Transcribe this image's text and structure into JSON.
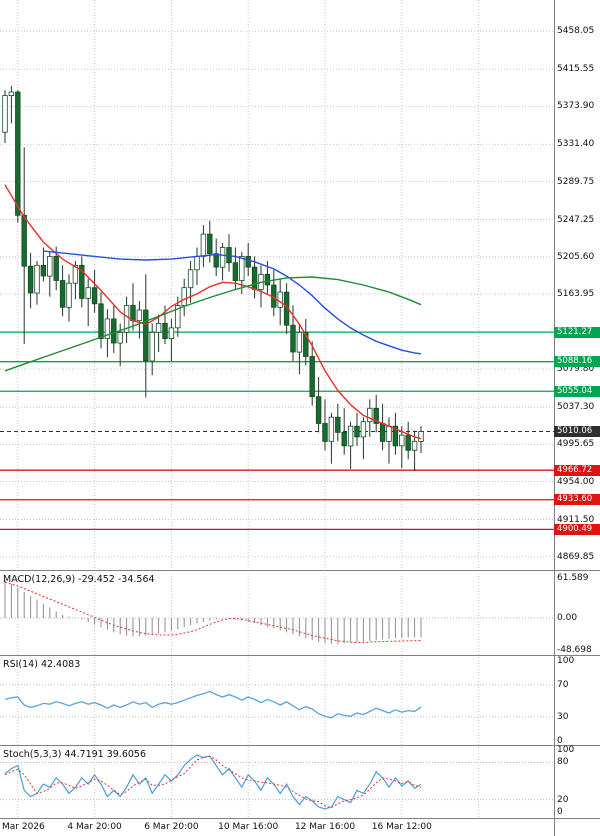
{
  "colors": {
    "background": "#ffffff",
    "grid": "#c8c8c8",
    "separator": "#808080",
    "text": "#111111",
    "candle_up": "#ffffff",
    "candle_down": "#176b2f",
    "candle_border": "#174a26",
    "candle_wick": "#26332a",
    "ma_fast": "#e8312a",
    "ma_mid": "#2450d8",
    "ma_slow": "#1e8c32",
    "level_up": "#00a651",
    "level_down": "#e01313",
    "level_current": "#2f2f2f",
    "macd_hist": "#8c8c8c",
    "macd_signal": "#e8312a",
    "rsi_line": "#55a5dd",
    "stoch_k": "#47a0d8",
    "stoch_d": "#e8312a"
  },
  "indicators": {
    "macd_label": "MACD(12,26,9) -29.452 -34.564",
    "rsi_label": "RSI(14) 42.4083",
    "stoch_label": "Stoch(5,3,3) 44.7191 39.6056"
  },
  "chart_data": [
    {
      "type": "candlestick",
      "title": "",
      "columns": [
        "open",
        "high",
        "low",
        "close"
      ],
      "ylim": [
        4855,
        5493
      ],
      "yticks": [
        "5458.05",
        "5415.55",
        "5373.90",
        "5331.40",
        "5289.75",
        "5247.25",
        "5205.60",
        "5163.95",
        "5079.80",
        "5037.30",
        "4995.65",
        "4954.00",
        "4911.50",
        "4869.85"
      ],
      "x_labels": [
        {
          "bar": 2,
          "label": "Mar 2026"
        },
        {
          "bar": 14,
          "label": "4 Mar 20:00"
        },
        {
          "bar": 26,
          "label": "6 Mar 20:00"
        },
        {
          "bar": 38,
          "label": "10 Mar 16:00"
        },
        {
          "bar": 50,
          "label": "12 Mar 16:00"
        },
        {
          "bar": 62,
          "label": "16 Mar 12:00"
        },
        {
          "bar": 74,
          "label": ""
        }
      ],
      "levels": [
        {
          "value": 5121.27,
          "label": "5121.27",
          "kind": "resistance"
        },
        {
          "value": 5088.16,
          "label": "5088.16",
          "kind": "resistance"
        },
        {
          "value": 5055.04,
          "label": "5055.04",
          "kind": "resistance"
        },
        {
          "value": 5010.06,
          "label": "5010.06",
          "kind": "current"
        },
        {
          "value": 4966.72,
          "label": "4966.72",
          "kind": "support"
        },
        {
          "value": 4933.6,
          "label": "4933.60",
          "kind": "support"
        },
        {
          "value": 4900.49,
          "label": "4900.49",
          "kind": "support"
        }
      ],
      "candles": [
        [
          5345,
          5392,
          5333,
          5386
        ],
        [
          5386,
          5397,
          5355,
          5390
        ],
        [
          5390,
          5392,
          5244,
          5252
        ],
        [
          5252,
          5328,
          5108,
          5195
        ],
        [
          5195,
          5210,
          5148,
          5165
        ],
        [
          5165,
          5201,
          5152,
          5196
        ],
        [
          5196,
          5216,
          5178,
          5184
        ],
        [
          5184,
          5212,
          5161,
          5206
        ],
        [
          5206,
          5217,
          5168,
          5179
        ],
        [
          5179,
          5196,
          5139,
          5149
        ],
        [
          5149,
          5186,
          5133,
          5176
        ],
        [
          5176,
          5201,
          5158,
          5196
        ],
        [
          5196,
          5206,
          5149,
          5159
        ],
        [
          5159,
          5181,
          5128,
          5171
        ],
        [
          5171,
          5191,
          5143,
          5153
        ],
        [
          5153,
          5166,
          5103,
          5114
        ],
        [
          5114,
          5147,
          5093,
          5136
        ],
        [
          5136,
          5151,
          5098,
          5109
        ],
        [
          5109,
          5131,
          5083,
          5121
        ],
        [
          5121,
          5161,
          5109,
          5151
        ],
        [
          5151,
          5176,
          5123,
          5134
        ],
        [
          5134,
          5156,
          5114,
          5146
        ],
        [
          5146,
          5186,
          5048,
          5089
        ],
        [
          5089,
          5131,
          5073,
          5121
        ],
        [
          5121,
          5141,
          5099,
          5131
        ],
        [
          5131,
          5151,
          5108,
          5114
        ],
        [
          5114,
          5136,
          5089,
          5126
        ],
        [
          5126,
          5161,
          5116,
          5151
        ],
        [
          5151,
          5181,
          5139,
          5171
        ],
        [
          5171,
          5201,
          5154,
          5191
        ],
        [
          5191,
          5216,
          5174,
          5206
        ],
        [
          5206,
          5241,
          5194,
          5231
        ],
        [
          5231,
          5246,
          5199,
          5209
        ],
        [
          5209,
          5226,
          5184,
          5194
        ],
        [
          5194,
          5221,
          5179,
          5216
        ],
        [
          5216,
          5231,
          5189,
          5199
        ],
        [
          5199,
          5216,
          5169,
          5179
        ],
        [
          5179,
          5211,
          5164,
          5206
        ],
        [
          5206,
          5221,
          5184,
          5194
        ],
        [
          5194,
          5206,
          5159,
          5169
        ],
        [
          5169,
          5196,
          5149,
          5186
        ],
        [
          5186,
          5201,
          5164,
          5174
        ],
        [
          5174,
          5191,
          5139,
          5149
        ],
        [
          5149,
          5181,
          5129,
          5166
        ],
        [
          5166,
          5176,
          5119,
          5129
        ],
        [
          5129,
          5151,
          5089,
          5099
        ],
        [
          5099,
          5131,
          5074,
          5121
        ],
        [
          5121,
          5136,
          5084,
          5094
        ],
        [
          5094,
          5111,
          5039,
          5049
        ],
        [
          5049,
          5071,
          5009,
          5019
        ],
        [
          5019,
          5046,
          4989,
          4999
        ],
        [
          4999,
          5031,
          4974,
          5026
        ],
        [
          5026,
          5041,
          4999,
          5009
        ],
        [
          5009,
          5036,
          4984,
          4994
        ],
        [
          4994,
          5021,
          4968,
          5016
        ],
        [
          5016,
          5031,
          4994,
          5004
        ],
        [
          5004,
          5026,
          4979,
          5021
        ],
        [
          5021,
          5046,
          5004,
          5036
        ],
        [
          5036,
          5051,
          5009,
          5019
        ],
        [
          5019,
          5041,
          4989,
          4999
        ],
        [
          4999,
          5026,
          4974,
          5016
        ],
        [
          5016,
          5031,
          4984,
          4994
        ],
        [
          4994,
          5016,
          4969,
          5006
        ],
        [
          5006,
          5021,
          4979,
          4989
        ],
        [
          4989,
          5011,
          4966,
          4999
        ],
        [
          4999,
          5016,
          4986,
          5010.06
        ]
      ],
      "overlays": [
        {
          "name": "ma-fast-red",
          "color_key": "ma_fast",
          "points": [
            [
              0,
              5286
            ],
            [
              3,
              5250
            ],
            [
              6,
              5222
            ],
            [
              9,
              5203
            ],
            [
              12,
              5190
            ],
            [
              15,
              5168
            ],
            [
              18,
              5144
            ],
            [
              20,
              5134
            ],
            [
              22,
              5130
            ],
            [
              24,
              5138
            ],
            [
              26,
              5150
            ],
            [
              28,
              5158
            ],
            [
              30,
              5164
            ],
            [
              32,
              5172
            ],
            [
              34,
              5177
            ],
            [
              36,
              5176
            ],
            [
              38,
              5172
            ],
            [
              40,
              5167
            ],
            [
              42,
              5160
            ],
            [
              44,
              5150
            ],
            [
              46,
              5130
            ],
            [
              48,
              5106
            ],
            [
              50,
              5078
            ],
            [
              52,
              5056
            ],
            [
              54,
              5040
            ],
            [
              56,
              5028
            ],
            [
              58,
              5022
            ],
            [
              60,
              5016
            ],
            [
              62,
              5010
            ],
            [
              64,
              5004
            ],
            [
              65,
              5002
            ]
          ]
        },
        {
          "name": "ma-mid-blue",
          "color_key": "ma_mid",
          "points": [
            [
              6,
              5212
            ],
            [
              10,
              5209
            ],
            [
              14,
              5206
            ],
            [
              18,
              5203
            ],
            [
              22,
              5202
            ],
            [
              26,
              5203
            ],
            [
              30,
              5206
            ],
            [
              33,
              5208
            ],
            [
              36,
              5206
            ],
            [
              39,
              5200
            ],
            [
              42,
              5192
            ],
            [
              44,
              5184
            ],
            [
              46,
              5174
            ],
            [
              48,
              5162
            ],
            [
              50,
              5148
            ],
            [
              52,
              5136
            ],
            [
              54,
              5126
            ],
            [
              56,
              5118
            ],
            [
              58,
              5111
            ],
            [
              60,
              5106
            ],
            [
              62,
              5101
            ],
            [
              64,
              5098
            ],
            [
              65,
              5097
            ]
          ]
        },
        {
          "name": "ma-slow-green",
          "color_key": "ma_slow",
          "points": [
            [
              0,
              5078
            ],
            [
              4,
              5088
            ],
            [
              8,
              5098
            ],
            [
              12,
              5108
            ],
            [
              16,
              5118
            ],
            [
              20,
              5128
            ],
            [
              24,
              5139
            ],
            [
              28,
              5150
            ],
            [
              32,
              5160
            ],
            [
              36,
              5169
            ],
            [
              40,
              5177
            ],
            [
              44,
              5182
            ],
            [
              48,
              5183
            ],
            [
              52,
              5180
            ],
            [
              56,
              5174
            ],
            [
              60,
              5166
            ],
            [
              63,
              5158
            ],
            [
              65,
              5152
            ]
          ]
        }
      ]
    },
    {
      "type": "bar",
      "name": "macd",
      "label": "MACD(12,26,9) -29.452 -34.564",
      "ylim": [
        -56.7,
        72.0
      ],
      "yticks": [
        {
          "v": 61.589,
          "label": "61.589"
        },
        {
          "v": 0,
          "label": "0.00"
        },
        {
          "v": -48.698,
          "label": "-48.698"
        }
      ],
      "zero_line": true,
      "histogram": [
        58,
        52,
        46,
        40,
        34,
        28,
        22,
        16,
        10,
        5,
        2,
        0,
        -2,
        -6,
        -10,
        -14,
        -18,
        -22,
        -25,
        -27,
        -28,
        -28,
        -27,
        -26,
        -24,
        -22,
        -20,
        -17,
        -14,
        -11,
        -8,
        -6,
        -4,
        -2,
        -1,
        -1,
        -2,
        -4,
        -6,
        -8,
        -11,
        -14,
        -16,
        -19,
        -22,
        -25,
        -28,
        -31,
        -34,
        -37,
        -39,
        -40,
        -40,
        -39,
        -38,
        -37,
        -36,
        -35,
        -34,
        -33,
        -32,
        -31,
        -30.5,
        -30,
        -29.7,
        -29.452
      ],
      "signal": [
        55,
        52,
        49,
        45,
        41,
        37,
        33,
        29,
        25,
        21,
        17,
        13,
        9,
        5,
        1,
        -3,
        -7,
        -11,
        -14,
        -17,
        -20,
        -22,
        -24,
        -25,
        -26,
        -26,
        -26,
        -25,
        -23,
        -21,
        -18,
        -14,
        -10,
        -6,
        -3,
        -1,
        -1,
        -2,
        -4,
        -6,
        -8,
        -10,
        -12,
        -14,
        -16,
        -18,
        -21,
        -24,
        -27,
        -29,
        -31,
        -33,
        -35,
        -36,
        -37,
        -37.5,
        -37.5,
        -37,
        -36.5,
        -36,
        -35.8,
        -35.5,
        -35.2,
        -35,
        -34.8,
        -34.564
      ]
    },
    {
      "type": "line",
      "name": "rsi",
      "label": "RSI(14) 42.4083",
      "ylim": [
        -5,
        106.25
      ],
      "yticks": [
        {
          "v": 100,
          "label": "100"
        },
        {
          "v": 70,
          "label": "70"
        },
        {
          "v": 30,
          "label": "30"
        },
        {
          "v": 0,
          "label": "0"
        }
      ],
      "dotted_levels": [
        70,
        30
      ],
      "values": [
        52,
        54,
        55,
        45,
        42,
        44,
        47,
        46,
        49,
        47,
        44,
        47,
        49,
        46,
        48,
        45,
        41,
        45,
        42,
        45,
        49,
        46,
        48,
        42,
        46,
        48,
        46,
        48,
        51,
        54,
        57,
        59,
        62,
        58,
        55,
        58,
        55,
        51,
        55,
        52,
        48,
        52,
        49,
        45,
        49,
        44,
        39,
        43,
        40,
        34,
        31,
        29,
        34,
        32,
        31,
        35,
        33,
        37,
        41,
        38,
        35,
        39,
        36,
        38,
        37,
        42.41
      ]
    },
    {
      "type": "line",
      "name": "stoch",
      "label": "Stoch(5,3,3) 44.7191 39.6056",
      "ylim": [
        -9.7,
        106.5
      ],
      "yticks": [
        {
          "v": 100,
          "label": "100"
        },
        {
          "v": 80,
          "label": "80"
        },
        {
          "v": 20,
          "label": "20"
        },
        {
          "v": 0,
          "label": "0"
        }
      ],
      "dotted_levels": [
        80,
        20
      ],
      "k": [
        62,
        70,
        75,
        35,
        25,
        30,
        45,
        40,
        55,
        45,
        30,
        40,
        55,
        45,
        60,
        45,
        25,
        35,
        25,
        40,
        60,
        45,
        55,
        30,
        45,
        60,
        50,
        60,
        75,
        85,
        92,
        88,
        90,
        75,
        60,
        70,
        55,
        40,
        60,
        50,
        35,
        55,
        45,
        30,
        45,
        25,
        12,
        25,
        18,
        8,
        5,
        8,
        25,
        20,
        15,
        35,
        30,
        45,
        65,
        55,
        40,
        55,
        42,
        50,
        38,
        44.72
      ],
      "d": [
        60,
        65,
        69,
        60,
        45,
        30,
        33,
        38,
        47,
        47,
        43,
        38,
        42,
        47,
        53,
        50,
        43,
        35,
        28,
        33,
        42,
        48,
        53,
        43,
        43,
        45,
        52,
        57,
        62,
        73,
        84,
        88,
        90,
        84,
        75,
        68,
        62,
        55,
        52,
        50,
        48,
        47,
        45,
        43,
        40,
        33,
        27,
        21,
        18,
        17,
        10,
        7,
        13,
        18,
        20,
        23,
        27,
        37,
        47,
        55,
        53,
        50,
        46,
        49,
        43,
        39.61
      ]
    }
  ]
}
